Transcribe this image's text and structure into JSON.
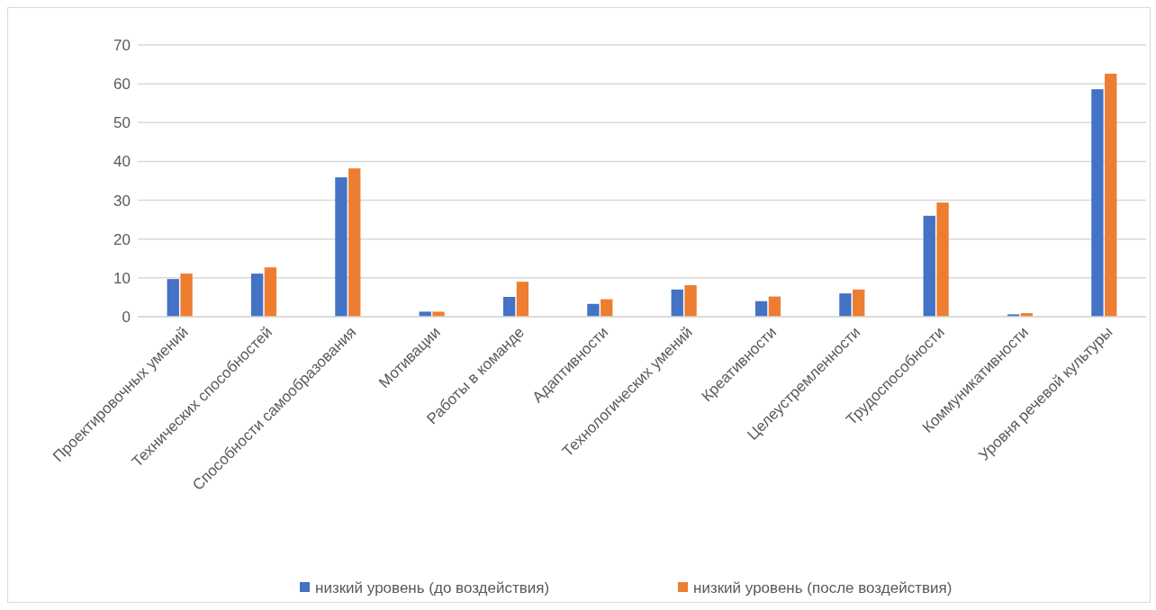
{
  "chart_data": {
    "type": "bar",
    "categories": [
      "Проектировочных умений",
      "Технических способностей",
      "Способности самообразования",
      "Мотивации",
      "Работы в команде",
      "Адаптивности",
      "Технологических умений",
      "Креативности",
      "Целеустремленности",
      "Трудоспособности",
      "Коммуникативности",
      "Уровня речевой культуры"
    ],
    "series": [
      {
        "name": "низкий уровень (до воздействия)",
        "color": "#4472c4",
        "values": [
          9.7,
          11.1,
          35.9,
          1.3,
          5.1,
          3.3,
          7.0,
          4.0,
          6.0,
          26.0,
          0.6,
          58.6
        ]
      },
      {
        "name": "низкий уровень (после воздействия)",
        "color": "#ed7d31",
        "values": [
          11.1,
          12.7,
          38.2,
          1.3,
          9.0,
          4.5,
          8.1,
          5.2,
          7.0,
          29.4,
          0.9,
          62.6
        ]
      }
    ],
    "ylim": [
      0,
      70
    ],
    "yticks": [
      0,
      10,
      20,
      30,
      40,
      50,
      60,
      70
    ],
    "grid": "y",
    "legend": "bottom"
  }
}
